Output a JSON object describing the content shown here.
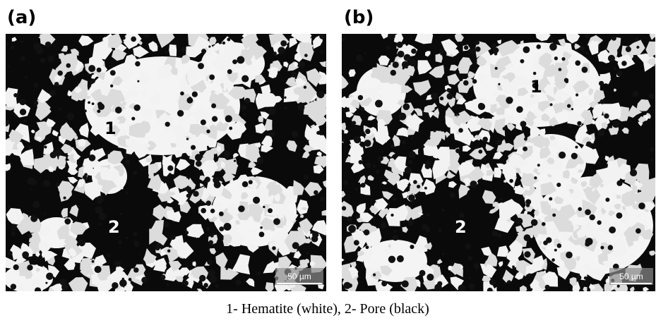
{
  "panels": [
    {
      "label": "(a)",
      "markers": [
        "1",
        "2"
      ],
      "scale_bar": "50 µm"
    },
    {
      "label": "(b)",
      "markers": [
        "1",
        "2"
      ],
      "scale_bar": "50 µm"
    }
  ],
  "caption": "1- Hematite (white), 2- Pore (black)"
}
